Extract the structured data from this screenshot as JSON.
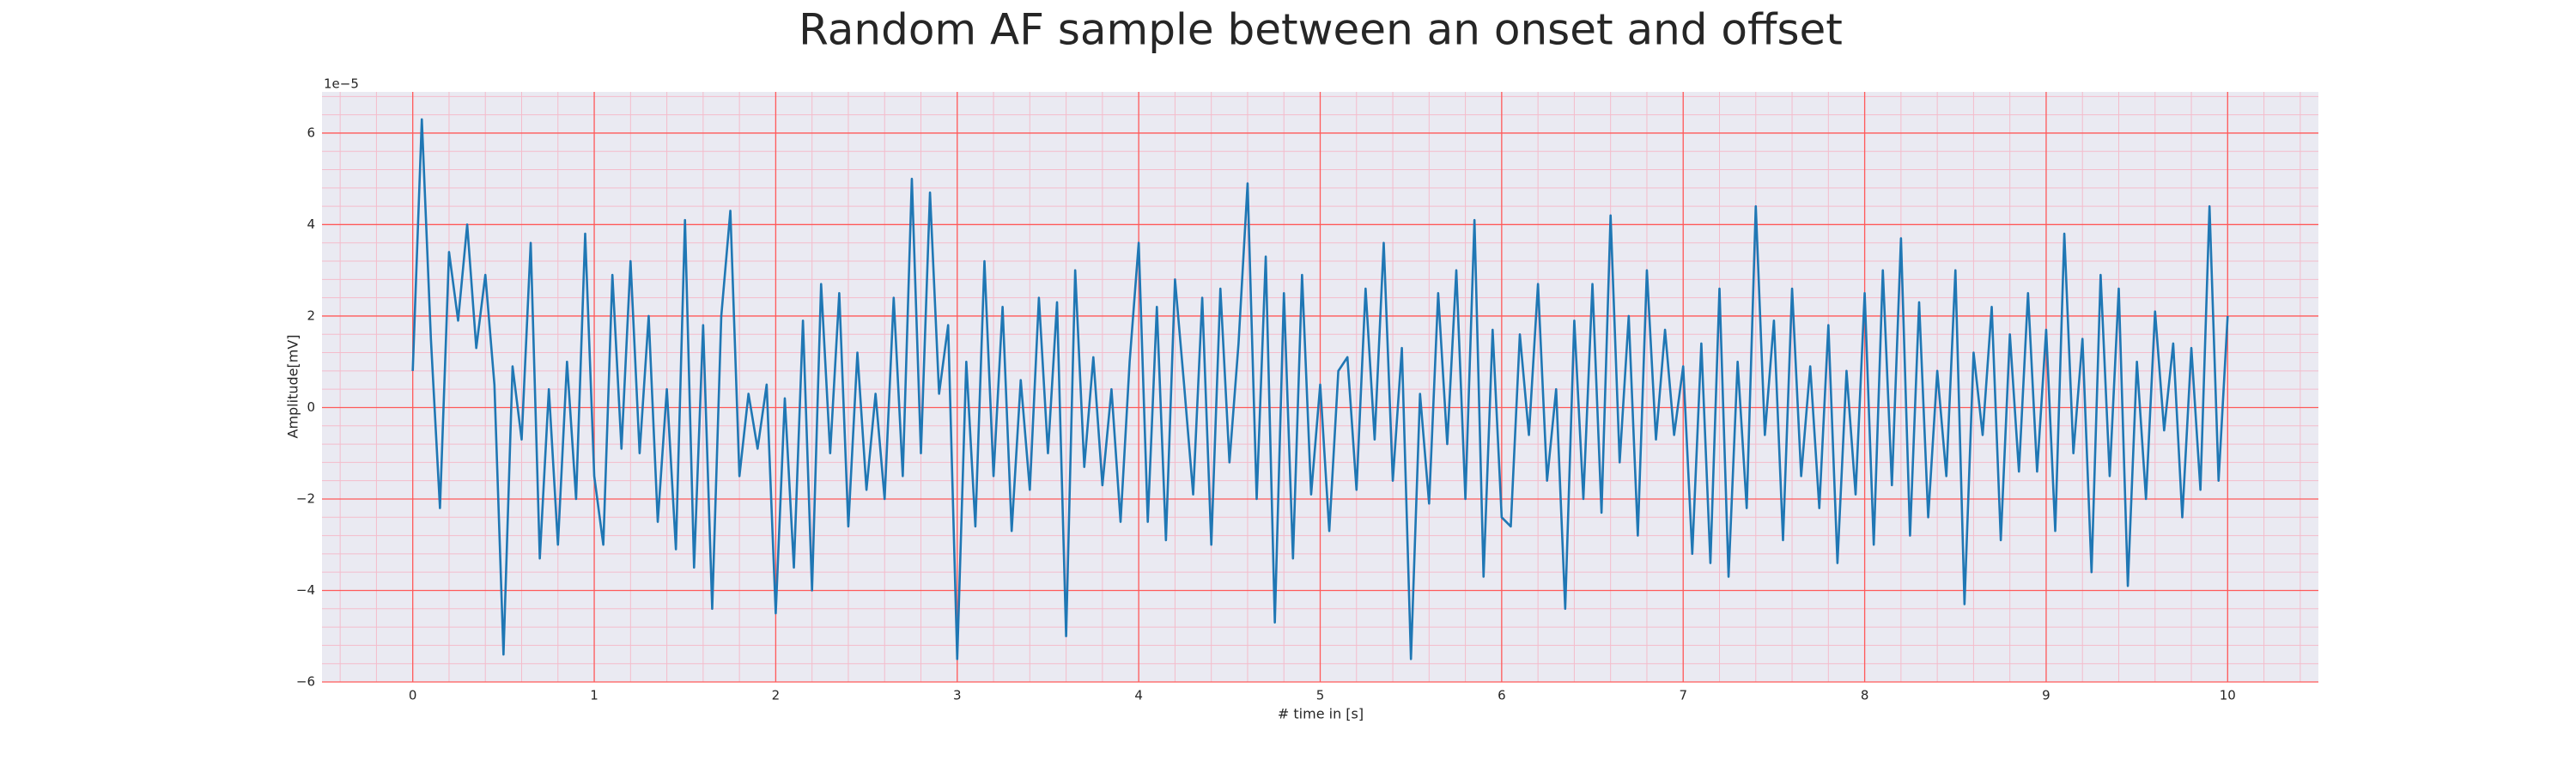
{
  "chart_data": {
    "type": "line",
    "title": "Random AF sample between an onset and offset",
    "x_label": "# time in [s]",
    "y_label": "Amplitude[mV]",
    "y_offset_label": "1e−5",
    "xlim": [
      -0.5,
      10.5
    ],
    "ylim": [
      -6.0,
      6.9
    ],
    "xticks": [
      0,
      1,
      2,
      3,
      4,
      5,
      6,
      7,
      8,
      9,
      10
    ],
    "yticks": [
      {
        "value": -6,
        "label": "−6"
      },
      {
        "value": -4,
        "label": "−4"
      },
      {
        "value": -2,
        "label": "−2"
      },
      0,
      2,
      4,
      6
    ],
    "grid": true,
    "grid_color": "#ff5a5a",
    "minor_grid_color": "#f4bccb",
    "minor_grid_step": {
      "x": 0.2,
      "y": 0.4
    },
    "background": "#eaeaf2",
    "x": [
      0,
      0.05,
      0.1,
      0.15,
      0.2,
      0.25,
      0.3,
      0.35,
      0.4,
      0.45,
      0.5,
      0.55,
      0.6,
      0.65,
      0.7,
      0.75,
      0.8,
      0.85,
      0.9,
      0.95,
      1,
      1.05,
      1.1,
      1.15,
      1.2,
      1.25,
      1.3,
      1.35,
      1.4,
      1.45,
      1.5,
      1.55,
      1.6,
      1.65,
      1.7,
      1.75,
      1.8,
      1.85,
      1.9,
      1.95,
      2,
      2.05,
      2.1,
      2.15,
      2.2,
      2.25,
      2.3,
      2.35,
      2.4,
      2.45,
      2.5,
      2.55,
      2.6,
      2.65,
      2.7,
      2.75,
      2.8,
      2.85,
      2.9,
      2.95,
      3,
      3.05,
      3.1,
      3.15,
      3.2,
      3.25,
      3.3,
      3.35,
      3.4,
      3.45,
      3.5,
      3.55,
      3.6,
      3.65,
      3.7,
      3.75,
      3.8,
      3.85,
      3.9,
      3.95,
      4,
      4.05,
      4.1,
      4.15,
      4.2,
      4.25,
      4.3,
      4.35,
      4.4,
      4.45,
      4.5,
      4.55,
      4.6,
      4.65,
      4.7,
      4.75,
      4.8,
      4.85,
      4.9,
      4.95,
      5,
      5.05,
      5.1,
      5.15,
      5.2,
      5.25,
      5.3,
      5.35,
      5.4,
      5.45,
      5.5,
      5.55,
      5.6,
      5.65,
      5.7,
      5.75,
      5.8,
      5.85,
      5.9,
      5.95,
      6,
      6.05,
      6.1,
      6.15,
      6.2,
      6.25,
      6.3,
      6.35,
      6.4,
      6.45,
      6.5,
      6.55,
      6.6,
      6.65,
      6.7,
      6.75,
      6.8,
      6.85,
      6.9,
      6.95,
      7,
      7.05,
      7.1,
      7.15,
      7.2,
      7.25,
      7.3,
      7.35,
      7.4,
      7.45,
      7.5,
      7.55,
      7.6,
      7.65,
      7.7,
      7.75,
      7.8,
      7.85,
      7.9,
      7.95,
      8,
      8.05,
      8.1,
      8.15,
      8.2,
      8.25,
      8.3,
      8.35,
      8.4,
      8.45,
      8.5,
      8.55,
      8.6,
      8.65,
      8.7,
      8.75,
      8.8,
      8.85,
      8.9,
      8.95,
      9,
      9.05,
      9.1,
      9.15,
      9.2,
      9.25,
      9.3,
      9.35,
      9.4,
      9.45,
      9.5,
      9.55,
      9.6,
      9.65,
      9.7,
      9.75,
      9.8,
      9.85,
      9.9,
      9.95,
      10
    ],
    "series": [
      {
        "color": "#1f77b4",
        "values": [
          0.8,
          6.3,
          1.5,
          -2.2,
          3.4,
          1.9,
          4.0,
          1.3,
          2.9,
          0.5,
          -5.4,
          0.9,
          -0.7,
          3.6,
          -3.3,
          0.4,
          -3.0,
          1.0,
          -2.0,
          3.8,
          -1.5,
          -3.0,
          2.9,
          -0.9,
          3.2,
          -1.0,
          2.0,
          -2.5,
          0.4,
          -3.1,
          4.1,
          -3.5,
          1.8,
          -4.4,
          2.0,
          4.3,
          -1.5,
          0.3,
          -0.9,
          0.5,
          -4.5,
          0.2,
          -3.5,
          1.9,
          -4.0,
          2.7,
          -1.0,
          2.5,
          -2.6,
          1.2,
          -1.8,
          0.3,
          -2.0,
          2.4,
          -1.5,
          5.0,
          -1.0,
          4.7,
          0.3,
          1.8,
          -5.5,
          1.0,
          -2.6,
          3.2,
          -1.5,
          2.2,
          -2.7,
          0.6,
          -1.8,
          2.4,
          -1.0,
          2.3,
          -5.0,
          3.0,
          -1.3,
          1.1,
          -1.7,
          0.4,
          -2.5,
          1.0,
          3.6,
          -2.5,
          2.2,
          -2.9,
          2.8,
          0.5,
          -1.9,
          2.4,
          -3.0,
          2.6,
          -1.2,
          1.4,
          4.9,
          -2.0,
          3.3,
          -4.7,
          2.5,
          -3.3,
          2.9,
          -1.9,
          0.5,
          -2.7,
          0.8,
          1.1,
          -1.8,
          2.6,
          -0.7,
          3.6,
          -1.6,
          1.3,
          -5.5,
          0.3,
          -2.1,
          2.5,
          -0.8,
          3.0,
          -2.0,
          4.1,
          -3.7,
          1.7,
          -2.4,
          -2.6,
          1.6,
          -0.6,
          2.7,
          -1.6,
          0.4,
          -4.4,
          1.9,
          -2.0,
          2.7,
          -2.3,
          4.2,
          -1.2,
          2.0,
          -2.8,
          3.0,
          -0.7,
          1.7,
          -0.6,
          0.9,
          -3.2,
          1.4,
          -3.4,
          2.6,
          -3.7,
          1.0,
          -2.2,
          4.4,
          -0.6,
          1.9,
          -2.9,
          2.6,
          -1.5,
          0.9,
          -2.2,
          1.8,
          -3.4,
          0.8,
          -1.9,
          2.5,
          -3.0,
          3.0,
          -1.7,
          3.7,
          -2.8,
          2.3,
          -2.4,
          0.8,
          -1.5,
          3.0,
          -4.3,
          1.2,
          -0.6,
          2.2,
          -2.9,
          1.6,
          -1.4,
          2.5,
          -1.4,
          1.7,
          -2.7,
          3.8,
          -1.0,
          1.5,
          -3.6,
          2.9,
          -1.5,
          2.6,
          -3.9,
          1.0,
          -2.0,
          2.1,
          -0.5,
          1.4,
          -2.4,
          1.3,
          -1.8,
          4.4,
          -1.6,
          2.0
        ]
      }
    ]
  }
}
